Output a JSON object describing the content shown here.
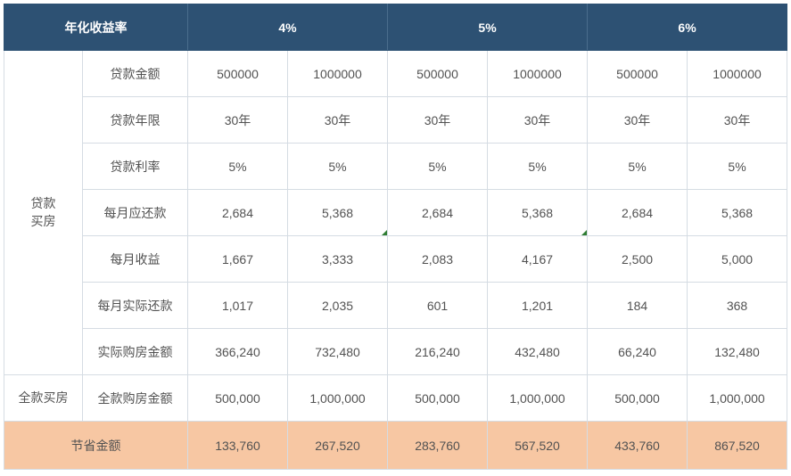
{
  "header": {
    "title": "年化收益率",
    "rates": [
      "4%",
      "5%",
      "6%"
    ]
  },
  "sections": {
    "loan": "贷款\n买房",
    "full": "全款买房"
  },
  "rows": [
    {
      "label": "贷款金额",
      "vals": [
        "500000",
        "1000000",
        "500000",
        "1000000",
        "500000",
        "1000000"
      ]
    },
    {
      "label": "贷款年限",
      "vals": [
        "30年",
        "30年",
        "30年",
        "30年",
        "30年",
        "30年"
      ]
    },
    {
      "label": "贷款利率",
      "vals": [
        "5%",
        "5%",
        "5%",
        "5%",
        "5%",
        "5%"
      ]
    },
    {
      "label": "每月应还款",
      "vals": [
        "2,684",
        "5,368",
        "2,684",
        "5,368",
        "2,684",
        "5,368"
      ]
    },
    {
      "label": "每月收益",
      "vals": [
        "1,667",
        "3,333",
        "2,083",
        "4,167",
        "2,500",
        "5,000"
      ]
    },
    {
      "label": "每月实际还款",
      "vals": [
        "1,017",
        "2,035",
        "601",
        "1,201",
        "184",
        "368"
      ]
    },
    {
      "label": "实际购房金额",
      "vals": [
        "366,240",
        "732,480",
        "216,240",
        "432,480",
        "66,240",
        "132,480"
      ]
    }
  ],
  "fullRow": {
    "label": "全款购房金额",
    "vals": [
      "500,000",
      "1,000,000",
      "500,000",
      "1,000,000",
      "500,000",
      "1,000,000"
    ]
  },
  "savings": {
    "label": "节省金额",
    "vals": [
      "133,760",
      "267,520",
      "283,760",
      "567,520",
      "433,760",
      "867,520"
    ]
  },
  "markers": {
    "row": 3,
    "cols": [
      1,
      3
    ]
  },
  "colors": {
    "header_bg": "#2d5173",
    "header_text": "#ffffff",
    "border": "#d5dce3",
    "body_text": "#525252",
    "savings_bg": "#f7c7a3",
    "marker": "#2e7d32"
  }
}
